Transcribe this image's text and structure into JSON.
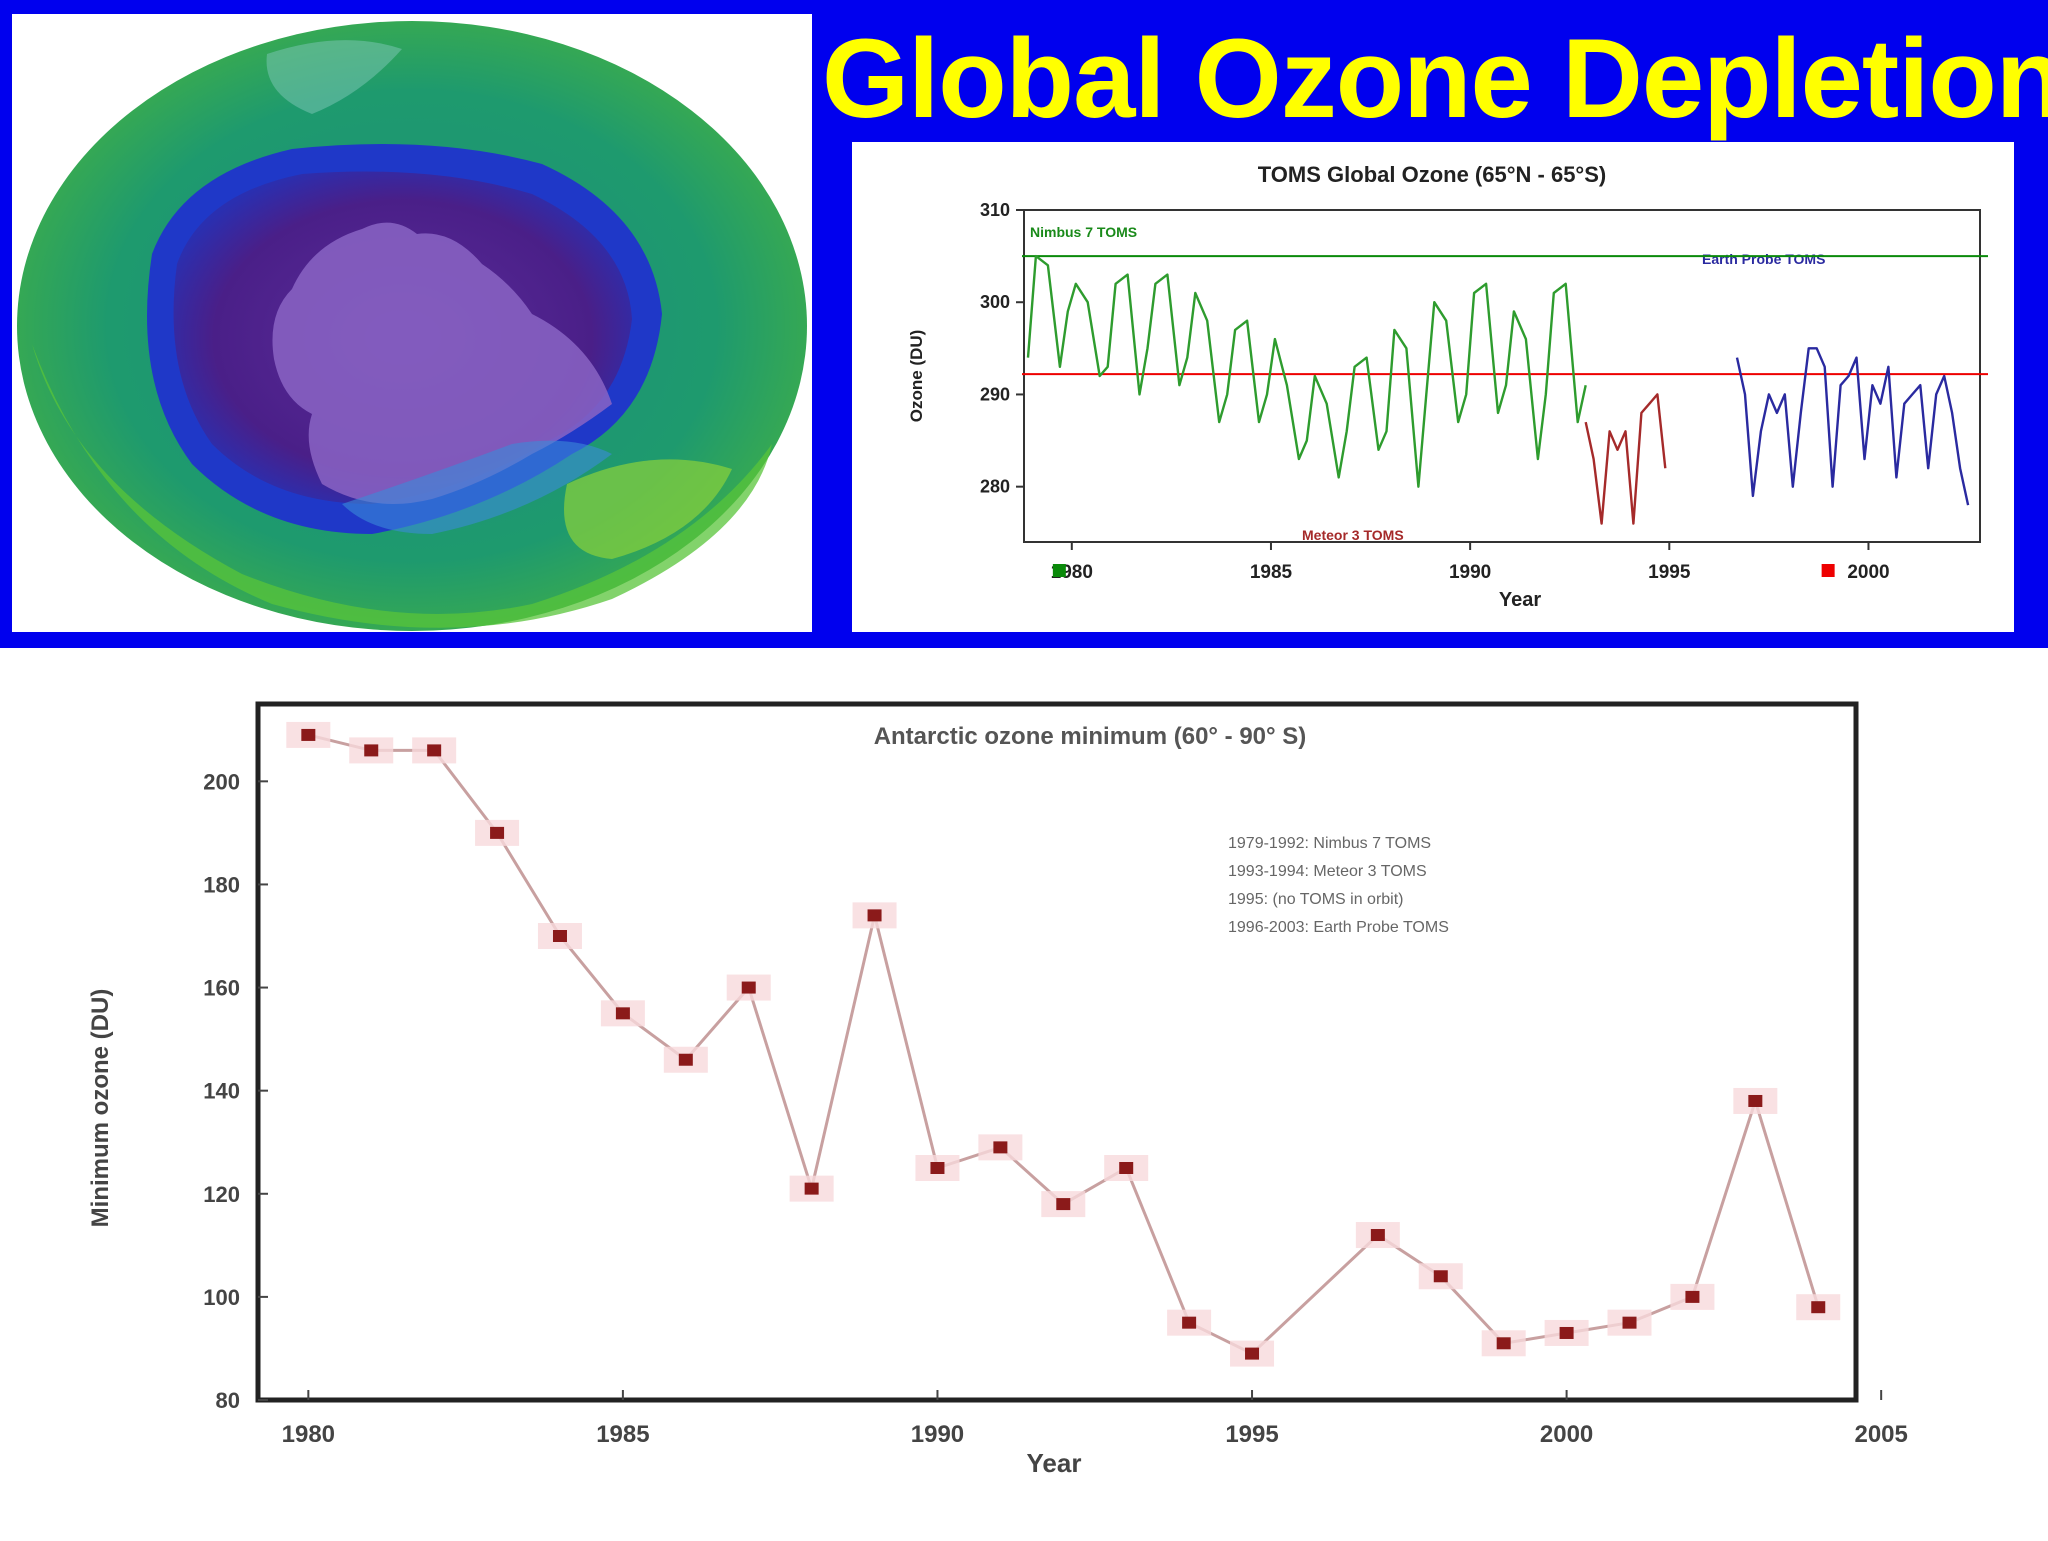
{
  "slide": {
    "title": "Global Ozone Depletion",
    "colors": {
      "background": "#0000ee",
      "title": "#ffff00"
    }
  },
  "globe_image": {
    "icon": "antarctic-ozone-hole-globe-image"
  },
  "chart_data": [
    {
      "type": "line",
      "title": "TOMS Global Ozone (65°N - 65°S)",
      "xlabel": "Year",
      "ylabel": "Ozone (DU)",
      "xlim": [
        1978.8,
        2002.8
      ],
      "ylim": [
        274,
        310
      ],
      "x_ticks": [
        1980,
        1985,
        1990,
        1995,
        2000
      ],
      "y_ticks": [
        280,
        290,
        300,
        310
      ],
      "grid": false,
      "reference_lines": [
        {
          "y": 305,
          "color": "#0a8a0a"
        },
        {
          "y": 292.2,
          "color": "#ee0000"
        }
      ],
      "series": [
        {
          "name": "Nimbus 7 TOMS",
          "color": "#2e9c2e",
          "x": [
            1978.9,
            1979.1,
            1979.4,
            1979.7,
            1979.9,
            1980.1,
            1980.4,
            1980.7,
            1980.9,
            1981.1,
            1981.4,
            1981.7,
            1981.9,
            1982.1,
            1982.4,
            1982.7,
            1982.9,
            1983.1,
            1983.4,
            1983.7,
            1983.9,
            1984.1,
            1984.4,
            1984.7,
            1984.9,
            1985.1,
            1985.4,
            1985.7,
            1985.9,
            1986.1,
            1986.4,
            1986.7,
            1986.9,
            1987.1,
            1987.4,
            1987.7,
            1987.9,
            1988.1,
            1988.4,
            1988.7,
            1988.9,
            1989.1,
            1989.4,
            1989.7,
            1989.9,
            1990.1,
            1990.4,
            1990.7,
            1990.9,
            1991.1,
            1991.4,
            1991.7,
            1991.9,
            1992.1,
            1992.4,
            1992.7,
            1992.9
          ],
          "values": [
            294,
            305,
            304,
            293,
            299,
            302,
            300,
            292,
            293,
            302,
            303,
            290,
            295,
            302,
            303,
            291,
            294,
            301,
            298,
            287,
            290,
            297,
            298,
            287,
            290,
            296,
            291,
            283,
            285,
            292,
            289,
            281,
            286,
            293,
            294,
            284,
            286,
            297,
            295,
            280,
            290,
            300,
            298,
            287,
            290,
            301,
            302,
            288,
            291,
            299,
            296,
            283,
            290,
            301,
            302,
            287,
            291
          ]
        },
        {
          "name": "Meteor 3 TOMS",
          "color": "#a52a2a",
          "x": [
            1992.9,
            1993.1,
            1993.3,
            1993.5,
            1993.7,
            1993.9,
            1994.1,
            1994.3,
            1994.5,
            1994.7,
            1994.9
          ],
          "values": [
            287,
            283,
            276,
            286,
            284,
            286,
            276,
            288,
            289,
            290,
            282
          ]
        },
        {
          "name": "Earth Probe TOMS",
          "color": "#2a2aa0",
          "x": [
            1996.7,
            1996.9,
            1997.1,
            1997.3,
            1997.5,
            1997.7,
            1997.9,
            1998.1,
            1998.3,
            1998.5,
            1998.7,
            1998.9,
            1999.1,
            1999.3,
            1999.5,
            1999.7,
            1999.9,
            2000.1,
            2000.3,
            2000.5,
            2000.7,
            2000.9,
            2001.1,
            2001.3,
            2001.5,
            2001.7,
            2001.9,
            2002.1,
            2002.3,
            2002.5
          ],
          "values": [
            294,
            290,
            279,
            286,
            290,
            288,
            290,
            280,
            288,
            295,
            295,
            293,
            280,
            291,
            292,
            294,
            283,
            291,
            289,
            293,
            281,
            289,
            290,
            291,
            282,
            290,
            292,
            288,
            282,
            278
          ]
        }
      ],
      "markers": [
        {
          "x": 1979.7,
          "color": "#0a8a0a"
        },
        {
          "x": 1999.0,
          "color": "#ee0000"
        }
      ]
    },
    {
      "type": "line",
      "title": "Antarctic ozone minimum (60° - 90° S)",
      "xlabel": "Year",
      "ylabel": "Minimum ozone (DU)",
      "xlim": [
        1979.2,
        2004.6
      ],
      "ylim": [
        80,
        215
      ],
      "x_ticks": [
        1980,
        1985,
        1990,
        1995,
        2000,
        2005
      ],
      "y_ticks": [
        80,
        100,
        120,
        140,
        160,
        180,
        200
      ],
      "grid": false,
      "legend": {
        "placement": "top-right",
        "entries": [
          "1979-1992: Nimbus 7 TOMS",
          "1993-1994: Meteor 3 TOMS",
          "1995: (no TOMS in orbit)",
          "1996-2003: Earth Probe TOMS"
        ]
      },
      "series": [
        {
          "name": "Minimum ozone",
          "color": "#c8a0a0",
          "marker_color": "#8b1a1a",
          "x": [
            1980,
            1981,
            1982,
            1983,
            1984,
            1985,
            1986,
            1987,
            1988,
            1989,
            1990,
            1991,
            1992,
            1993,
            1994,
            1995,
            1997,
            1998,
            1999,
            2000,
            2001,
            2002,
            2003,
            2004
          ],
          "values": [
            209,
            206,
            206,
            190,
            170,
            155,
            146,
            160,
            121,
            174,
            125,
            129,
            118,
            125,
            95,
            89,
            112,
            104,
            91,
            93,
            95,
            100,
            138,
            98
          ]
        }
      ]
    }
  ]
}
